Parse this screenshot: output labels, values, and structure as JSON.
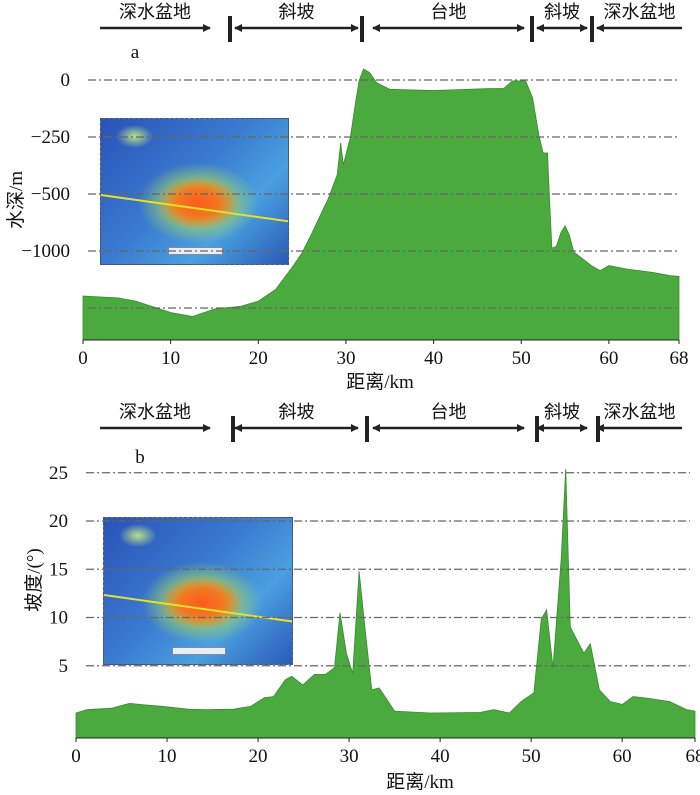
{
  "zones": [
    {
      "label": "深水盆地",
      "arrow": "right"
    },
    {
      "label": "斜坡",
      "arrow": "both"
    },
    {
      "label": "台地",
      "arrow": "both"
    },
    {
      "label": "斜坡",
      "arrow": "both"
    },
    {
      "label": "深水盆地",
      "arrow": "left"
    }
  ],
  "colors": {
    "fill": "#4aaa3e",
    "grid": "#666666"
  },
  "chart_data": [
    {
      "type": "area",
      "panel_label": "a",
      "title": "",
      "xlabel": "距离/km",
      "ylabel": "水深/m",
      "xlim": [
        0,
        68
      ],
      "ylim": [
        -1780,
        60
      ],
      "x_ticks": [
        "0",
        "10",
        "20",
        "30",
        "40",
        "50",
        "60",
        "68"
      ],
      "y_ticks": [
        "0",
        "−250",
        "−500",
        "−1000"
      ],
      "y_tick_values": [
        0,
        -250,
        -500,
        -1000
      ],
      "extra_gridlines": [
        -1500
      ],
      "grid": "horizontal dash-dot",
      "series": [
        {
          "name": "水深",
          "x": [
            0,
            4,
            6,
            10,
            12.5,
            15,
            18,
            20,
            22,
            24,
            25,
            26,
            27,
            28,
            29,
            29.4,
            29.7,
            30.5,
            31,
            31.5,
            32,
            32.7,
            33.5,
            35,
            40,
            46,
            48,
            49,
            50.5,
            51.3,
            52,
            52.5,
            53,
            53.2,
            53.5,
            54,
            54.5,
            55,
            55.5,
            56,
            58,
            59,
            60,
            62,
            65,
            67,
            68
          ],
          "y": [
            -1396,
            -1411,
            -1440,
            -1539,
            -1574,
            -1509,
            -1485,
            -1440,
            -1336,
            -1128,
            -1015,
            -862,
            -700,
            -538,
            -416,
            -276,
            -372,
            -254,
            -122,
            -4,
            47,
            32,
            -12,
            -41,
            -46,
            -38,
            -37,
            -4,
            -4,
            -78,
            -240,
            -320,
            -320,
            -504,
            -975,
            -960,
            -844,
            -779,
            -862,
            -1009,
            -1128,
            -1173,
            -1128,
            -1158,
            -1188,
            -1217,
            -1223
          ]
        }
      ]
    },
    {
      "type": "area",
      "panel_label": "b",
      "title": "",
      "xlabel": "距离/km",
      "ylabel": "坡度/(°)",
      "xlim": [
        0,
        68
      ],
      "ylim": [
        -2.5,
        26
      ],
      "x_ticks": [
        "0",
        "10",
        "20",
        "30",
        "40",
        "50",
        "60",
        "68"
      ],
      "y_ticks": [
        "5",
        "10",
        "15",
        "20",
        "25"
      ],
      "y_tick_values": [
        5,
        10,
        15,
        20,
        25
      ],
      "grid": "horizontal dash-dot",
      "series": [
        {
          "name": "坡度",
          "x": [
            0,
            1.2,
            3.9,
            5.9,
            7.4,
            9.4,
            12.3,
            14.3,
            17.3,
            19.2,
            20.7,
            21.7,
            23,
            23.7,
            24.9,
            26.2,
            27.4,
            28.4,
            29,
            29.7,
            30.4,
            31.1,
            31.8,
            32.5,
            33.3,
            35,
            39,
            44.4,
            45.9,
            47.6,
            48.9,
            50.3,
            51.1,
            51.7,
            52.4,
            53.3,
            53.8,
            54.3,
            55.8,
            56.5,
            57.5,
            58.7,
            60,
            61.2,
            62.7,
            65.2,
            67.1,
            68
          ],
          "y": [
            0.1,
            0.45,
            0.6,
            1.1,
            0.95,
            0.8,
            0.5,
            0.45,
            0.5,
            0.8,
            1.7,
            1.8,
            3.55,
            3.9,
            3.0,
            4.1,
            4.1,
            4.8,
            10.5,
            6.3,
            4.2,
            14.8,
            8.4,
            2.5,
            2.7,
            0.3,
            0.1,
            0.17,
            0.45,
            0.1,
            1.3,
            2.2,
            9.8,
            10.8,
            4.8,
            16.1,
            25.4,
            9.0,
            6.3,
            7.3,
            2.5,
            1.3,
            1.0,
            1.8,
            1.65,
            1.3,
            0.45,
            0.3
          ]
        }
      ]
    }
  ]
}
